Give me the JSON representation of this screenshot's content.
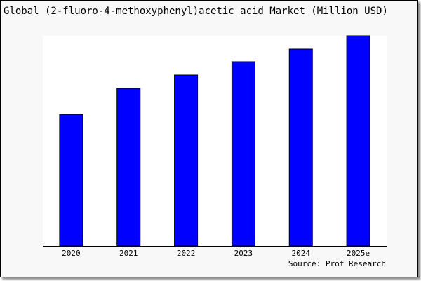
{
  "chart_data": {
    "type": "bar",
    "title": "Global (2-fluoro-4-methoxyphenyl)acetic acid Market (Million USD)",
    "categories": [
      "2020",
      "2021",
      "2022",
      "2023",
      "2024",
      "2025e"
    ],
    "values": [
      188,
      225,
      244,
      263,
      281,
      300
    ],
    "ylim": [
      0,
      300
    ],
    "xlabel": "",
    "ylabel": "",
    "grid": false,
    "bar_color": "#0000ff",
    "source": "Source: Prof Research"
  }
}
